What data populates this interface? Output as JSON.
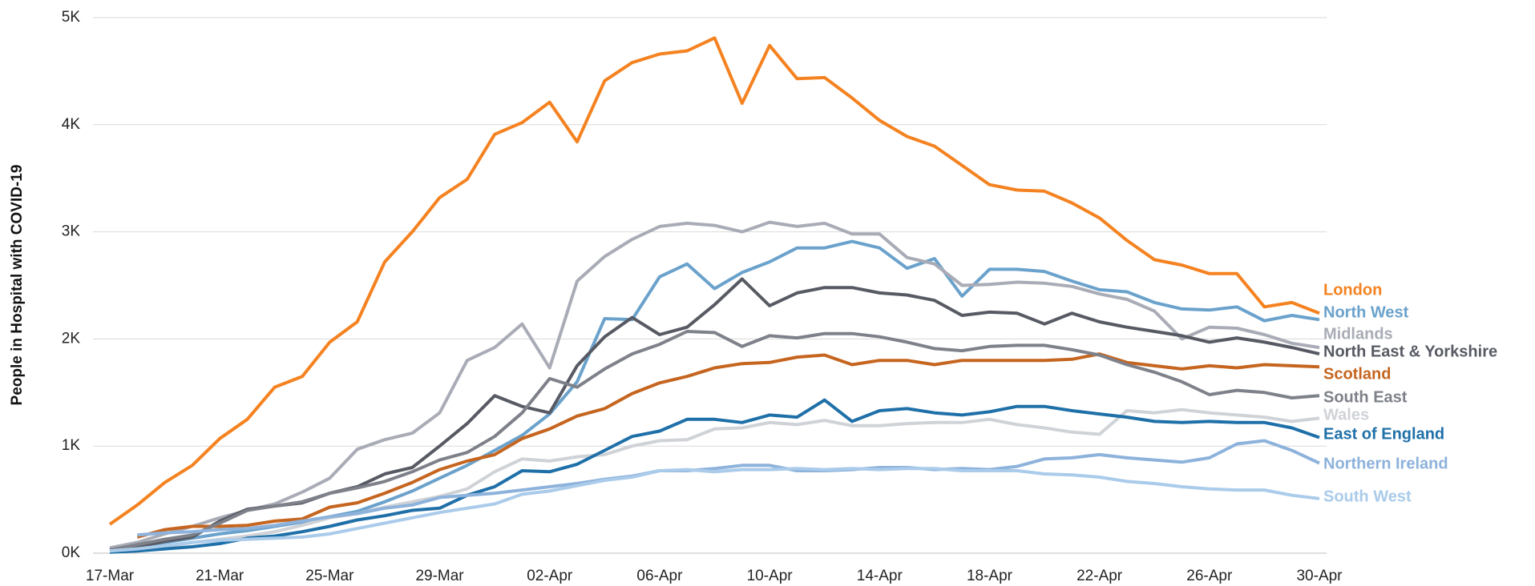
{
  "chart_data": {
    "type": "line",
    "y_label": "People in Hospital with COVID-19",
    "categories": [
      "17-Mar",
      null,
      null,
      null,
      "21-Mar",
      null,
      null,
      null,
      "25-Mar",
      null,
      null,
      null,
      "29-Mar",
      null,
      null,
      null,
      "02-Apr",
      null,
      null,
      null,
      "06-Apr",
      null,
      null,
      null,
      "10-Apr",
      null,
      null,
      null,
      "14-Apr",
      null,
      null,
      null,
      "18-Apr",
      null,
      null,
      null,
      "22-Apr",
      null,
      null,
      null,
      "26-Apr",
      null,
      null,
      null,
      "30-Apr"
    ],
    "ylim": [
      0,
      5000
    ],
    "yticks": [
      {
        "value": 0,
        "label": "0K"
      },
      {
        "value": 1000,
        "label": "1K"
      },
      {
        "value": 2000,
        "label": "2K"
      },
      {
        "value": 3000,
        "label": "3K"
      },
      {
        "value": 4000,
        "label": "4K"
      },
      {
        "value": 5000,
        "label": "5K"
      }
    ],
    "grid": true,
    "series": [
      {
        "name": "London",
        "color": "#f58220",
        "values": [
          270,
          450,
          660,
          820,
          1070,
          1250,
          1550,
          1650,
          1970,
          2160,
          2720,
          3000,
          3320,
          3490,
          3910,
          4020,
          4210,
          3840,
          4410,
          4580,
          4660,
          4690,
          4810,
          4200,
          4740,
          4430,
          4440,
          4250,
          4040,
          3890,
          3800,
          3620,
          3440,
          3390,
          3380,
          3270,
          3130,
          2920,
          2740,
          2690,
          2610,
          2610,
          2300,
          2340,
          2240
        ]
      },
      {
        "name": "North West",
        "color": "#6aa2cc",
        "values": [
          30,
          60,
          100,
          140,
          180,
          210,
          250,
          290,
          340,
          390,
          480,
          580,
          700,
          820,
          960,
          1100,
          1300,
          1600,
          2190,
          2180,
          2580,
          2700,
          2470,
          2620,
          2720,
          2850,
          2850,
          2910,
          2850,
          2660,
          2750,
          2400,
          2650,
          2650,
          2630,
          2540,
          2460,
          2440,
          2340,
          2280,
          2270,
          2300,
          2170,
          2220,
          2180
        ]
      },
      {
        "name": "Midlands",
        "color": "#a9acb6",
        "values": [
          50,
          100,
          180,
          250,
          330,
          400,
          460,
          570,
          700,
          970,
          1060,
          1120,
          1310,
          1800,
          1920,
          2140,
          1730,
          2540,
          2770,
          2930,
          3050,
          3080,
          3060,
          3000,
          3090,
          3050,
          3080,
          2980,
          2980,
          2760,
          2700,
          2500,
          2510,
          2530,
          2520,
          2490,
          2420,
          2370,
          2260,
          2000,
          2110,
          2100,
          2040,
          1960,
          1920
        ]
      },
      {
        "name": "North East & Yorkshire",
        "color": "#575a63",
        "values": [
          30,
          60,
          110,
          150,
          300,
          410,
          440,
          470,
          560,
          620,
          740,
          800,
          1000,
          1210,
          1470,
          1370,
          1310,
          1750,
          2020,
          2200,
          2040,
          2110,
          2320,
          2560,
          2310,
          2430,
          2480,
          2480,
          2430,
          2410,
          2360,
          2220,
          2250,
          2240,
          2140,
          2240,
          2160,
          2110,
          2070,
          2030,
          1970,
          2010,
          1970,
          1920,
          1860
        ]
      },
      {
        "name": "Scotland",
        "color": "#c5651f",
        "values": [
          null,
          150,
          220,
          250,
          250,
          260,
          300,
          320,
          430,
          470,
          560,
          660,
          780,
          860,
          920,
          1070,
          1160,
          1280,
          1350,
          1490,
          1590,
          1650,
          1730,
          1770,
          1780,
          1830,
          1850,
          1760,
          1800,
          1800,
          1760,
          1800,
          1800,
          1800,
          1800,
          1810,
          1860,
          1780,
          1750,
          1720,
          1750,
          1730,
          1760,
          1750,
          1740
        ]
      },
      {
        "name": "South East",
        "color": "#7e8189",
        "values": [
          30,
          80,
          130,
          170,
          280,
          400,
          440,
          480,
          560,
          610,
          670,
          760,
          870,
          940,
          1090,
          1310,
          1630,
          1550,
          1720,
          1860,
          1950,
          2070,
          2060,
          1930,
          2030,
          2010,
          2050,
          2050,
          2020,
          1970,
          1910,
          1890,
          1930,
          1940,
          1940,
          1900,
          1850,
          1760,
          1690,
          1600,
          1480,
          1520,
          1500,
          1450,
          1470
        ]
      },
      {
        "name": "Wales",
        "color": "#cfd2d7",
        "values": [
          20,
          40,
          60,
          100,
          130,
          160,
          200,
          260,
          330,
          370,
          430,
          480,
          530,
          600,
          760,
          880,
          860,
          900,
          920,
          1000,
          1050,
          1060,
          1160,
          1170,
          1220,
          1200,
          1240,
          1190,
          1190,
          1210,
          1220,
          1220,
          1250,
          1200,
          1170,
          1130,
          1110,
          1330,
          1310,
          1340,
          1310,
          1290,
          1270,
          1230,
          1260
        ]
      },
      {
        "name": "East of England",
        "color": "#1f70a8",
        "values": [
          10,
          20,
          40,
          60,
          90,
          140,
          160,
          200,
          250,
          310,
          350,
          400,
          420,
          540,
          620,
          770,
          760,
          830,
          960,
          1090,
          1140,
          1250,
          1250,
          1220,
          1290,
          1270,
          1430,
          1230,
          1330,
          1350,
          1310,
          1290,
          1320,
          1370,
          1370,
          1330,
          1300,
          1270,
          1230,
          1220,
          1230,
          1220,
          1220,
          1170,
          1080
        ]
      },
      {
        "name": "Northern Ireland",
        "color": "#8db2db",
        "values": [
          null,
          170,
          190,
          200,
          220,
          230,
          260,
          300,
          340,
          370,
          420,
          450,
          520,
          540,
          560,
          590,
          620,
          650,
          690,
          720,
          770,
          770,
          790,
          820,
          820,
          770,
          770,
          780,
          800,
          800,
          780,
          790,
          780,
          810,
          880,
          890,
          920,
          890,
          870,
          850,
          890,
          1020,
          1050,
          960,
          840
        ]
      },
      {
        "name": "South West",
        "color": "#aacbea",
        "values": [
          20,
          40,
          70,
          100,
          120,
          130,
          140,
          150,
          180,
          230,
          280,
          330,
          380,
          420,
          460,
          550,
          580,
          630,
          680,
          710,
          770,
          780,
          760,
          780,
          780,
          790,
          780,
          790,
          780,
          790,
          790,
          770,
          770,
          770,
          740,
          730,
          710,
          670,
          650,
          620,
          600,
          590,
          590,
          540,
          510
        ]
      }
    ]
  }
}
